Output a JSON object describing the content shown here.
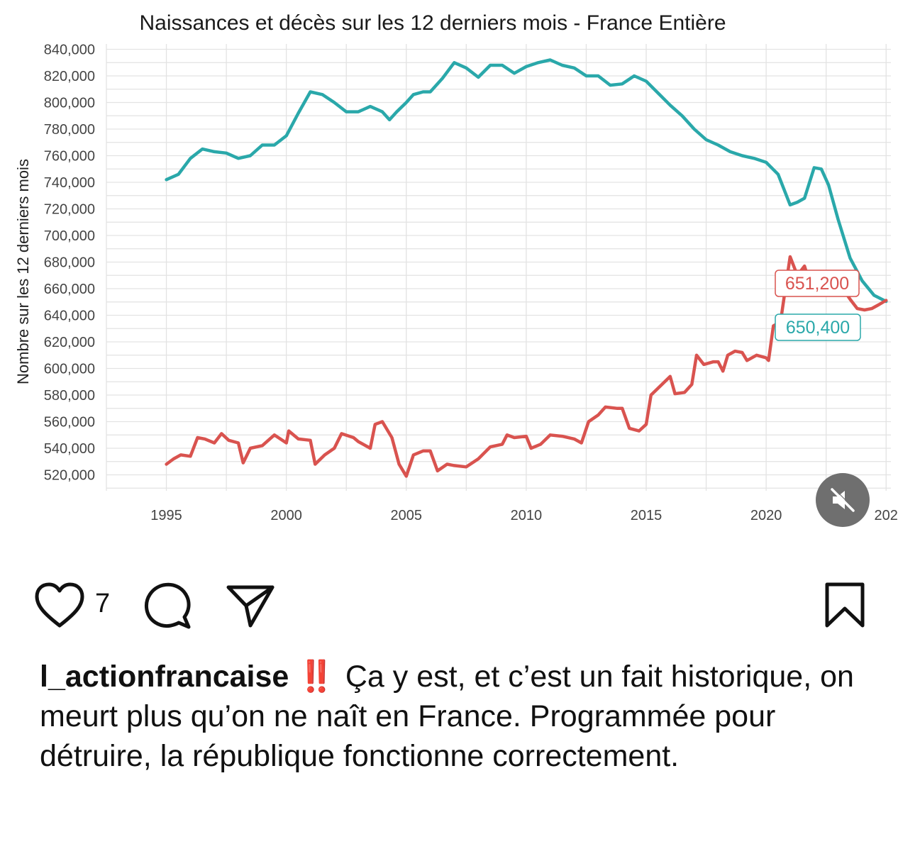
{
  "post": {
    "username": "l_actionfrancaise",
    "emoji": "‼️",
    "caption": "Ça y est, et c’est un fait historique, on meurt plus qu’on ne naît en France. Programmée pour détruire, la république fonctionne correctement.",
    "like_count": "7"
  },
  "icons": {
    "like": "heart-icon",
    "comment": "comment-bubble-icon",
    "share": "paper-plane-icon",
    "save": "bookmark-icon",
    "mute": "speaker-muted-icon"
  },
  "colors": {
    "births": "#2aa8aa",
    "deaths": "#d9534f",
    "mute_bg": "#6f6f6f"
  },
  "chart_data": {
    "type": "line",
    "title": "Naissances et décès sur les 12 derniers mois - France Entière",
    "xlabel": "",
    "ylabel": "Nombre sur les 12 derniers mois",
    "xlim": [
      1992.5,
      2025.2
    ],
    "ylim": [
      508000,
      844000
    ],
    "x_ticks": [
      "1995",
      "2000",
      "2005",
      "2010",
      "2015",
      "2020",
      "202"
    ],
    "y_ticks": [
      "520,000",
      "540,000",
      "560,000",
      "580,000",
      "600,000",
      "620,000",
      "640,000",
      "660,000",
      "680,000",
      "700,000",
      "720,000",
      "740,000",
      "760,000",
      "780,000",
      "800,000",
      "820,000",
      "840,000"
    ],
    "grid": true,
    "legend": "none",
    "series": [
      {
        "color": "#2aa8aa",
        "end_label": "650,400",
        "points": [
          [
            1995.0,
            742000
          ],
          [
            1995.5,
            746000
          ],
          [
            1996.0,
            758000
          ],
          [
            1996.5,
            765000
          ],
          [
            1997.0,
            763000
          ],
          [
            1997.5,
            762000
          ],
          [
            1998.0,
            758000
          ],
          [
            1998.5,
            760000
          ],
          [
            1999.0,
            768000
          ],
          [
            1999.5,
            768000
          ],
          [
            2000.0,
            775000
          ],
          [
            2000.5,
            792000
          ],
          [
            2001.0,
            808000
          ],
          [
            2001.5,
            806000
          ],
          [
            2002.0,
            800000
          ],
          [
            2002.5,
            793000
          ],
          [
            2003.0,
            793000
          ],
          [
            2003.5,
            797000
          ],
          [
            2004.0,
            793000
          ],
          [
            2004.3,
            787000
          ],
          [
            2004.6,
            793000
          ],
          [
            2005.0,
            800000
          ],
          [
            2005.3,
            806000
          ],
          [
            2005.7,
            808000
          ],
          [
            2006.0,
            808000
          ],
          [
            2006.5,
            818000
          ],
          [
            2007.0,
            830000
          ],
          [
            2007.5,
            826000
          ],
          [
            2008.0,
            819000
          ],
          [
            2008.5,
            828000
          ],
          [
            2009.0,
            828000
          ],
          [
            2009.5,
            822000
          ],
          [
            2010.0,
            827000
          ],
          [
            2010.5,
            830000
          ],
          [
            2011.0,
            832000
          ],
          [
            2011.5,
            828000
          ],
          [
            2012.0,
            826000
          ],
          [
            2012.5,
            820000
          ],
          [
            2013.0,
            820000
          ],
          [
            2013.5,
            813000
          ],
          [
            2014.0,
            814000
          ],
          [
            2014.5,
            820000
          ],
          [
            2015.0,
            816000
          ],
          [
            2015.5,
            807000
          ],
          [
            2016.0,
            798000
          ],
          [
            2016.5,
            790000
          ],
          [
            2017.0,
            780000
          ],
          [
            2017.5,
            772000
          ],
          [
            2018.0,
            768000
          ],
          [
            2018.5,
            763000
          ],
          [
            2019.0,
            760000
          ],
          [
            2019.5,
            758000
          ],
          [
            2020.0,
            755000
          ],
          [
            2020.5,
            746000
          ],
          [
            2021.0,
            723000
          ],
          [
            2021.3,
            725000
          ],
          [
            2021.6,
            728000
          ],
          [
            2022.0,
            751000
          ],
          [
            2022.3,
            750000
          ],
          [
            2022.6,
            738000
          ],
          [
            2023.0,
            712000
          ],
          [
            2023.5,
            683000
          ],
          [
            2024.0,
            666000
          ],
          [
            2024.5,
            655000
          ],
          [
            2025.0,
            650400
          ]
        ]
      },
      {
        "color": "#d9534f",
        "end_label": "651,200",
        "points": [
          [
            1995.0,
            528000
          ],
          [
            1995.3,
            532000
          ],
          [
            1995.6,
            535000
          ],
          [
            1996.0,
            534000
          ],
          [
            1996.3,
            548000
          ],
          [
            1996.6,
            547000
          ],
          [
            1997.0,
            544000
          ],
          [
            1997.3,
            551000
          ],
          [
            1997.6,
            546000
          ],
          [
            1998.0,
            544000
          ],
          [
            1998.2,
            529000
          ],
          [
            1998.5,
            540000
          ],
          [
            1999.0,
            542000
          ],
          [
            1999.5,
            550000
          ],
          [
            2000.0,
            544000
          ],
          [
            2000.1,
            553000
          ],
          [
            2000.5,
            547000
          ],
          [
            2001.0,
            546000
          ],
          [
            2001.2,
            528000
          ],
          [
            2001.6,
            535000
          ],
          [
            2002.0,
            540000
          ],
          [
            2002.3,
            551000
          ],
          [
            2002.8,
            548000
          ],
          [
            2003.0,
            545000
          ],
          [
            2003.5,
            540000
          ],
          [
            2003.7,
            558000
          ],
          [
            2004.0,
            560000
          ],
          [
            2004.4,
            548000
          ],
          [
            2004.7,
            528000
          ],
          [
            2005.0,
            519000
          ],
          [
            2005.3,
            535000
          ],
          [
            2005.7,
            538000
          ],
          [
            2006.0,
            538000
          ],
          [
            2006.3,
            523000
          ],
          [
            2006.7,
            528000
          ],
          [
            2007.0,
            527000
          ],
          [
            2007.5,
            526000
          ],
          [
            2008.0,
            532000
          ],
          [
            2008.5,
            541000
          ],
          [
            2009.0,
            543000
          ],
          [
            2009.2,
            550000
          ],
          [
            2009.5,
            548000
          ],
          [
            2010.0,
            549000
          ],
          [
            2010.2,
            540000
          ],
          [
            2010.6,
            543000
          ],
          [
            2011.0,
            550000
          ],
          [
            2011.5,
            549000
          ],
          [
            2012.0,
            547000
          ],
          [
            2012.3,
            544000
          ],
          [
            2012.6,
            560000
          ],
          [
            2013.0,
            565000
          ],
          [
            2013.3,
            571000
          ],
          [
            2013.8,
            570000
          ],
          [
            2014.0,
            570000
          ],
          [
            2014.3,
            555000
          ],
          [
            2014.7,
            553000
          ],
          [
            2015.0,
            558000
          ],
          [
            2015.2,
            580000
          ],
          [
            2015.6,
            587000
          ],
          [
            2016.0,
            594000
          ],
          [
            2016.2,
            581000
          ],
          [
            2016.6,
            582000
          ],
          [
            2016.9,
            588000
          ],
          [
            2017.1,
            610000
          ],
          [
            2017.4,
            603000
          ],
          [
            2017.8,
            605000
          ],
          [
            2018.0,
            605000
          ],
          [
            2018.2,
            598000
          ],
          [
            2018.4,
            610000
          ],
          [
            2018.7,
            613000
          ],
          [
            2019.0,
            612000
          ],
          [
            2019.2,
            606000
          ],
          [
            2019.6,
            610000
          ],
          [
            2020.0,
            608000
          ],
          [
            2020.1,
            606000
          ],
          [
            2020.3,
            632000
          ],
          [
            2020.6,
            635000
          ],
          [
            2020.8,
            660000
          ],
          [
            2021.0,
            684000
          ],
          [
            2021.3,
            670000
          ],
          [
            2021.6,
            677000
          ],
          [
            2021.8,
            665000
          ],
          [
            2022.0,
            662000
          ],
          [
            2022.3,
            658000
          ],
          [
            2022.6,
            668000
          ],
          [
            2022.9,
            672000
          ],
          [
            2023.2,
            660000
          ],
          [
            2023.5,
            652000
          ],
          [
            2023.8,
            645000
          ],
          [
            2024.1,
            644000
          ],
          [
            2024.4,
            645000
          ],
          [
            2024.7,
            648000
          ],
          [
            2025.0,
            651200
          ]
        ]
      }
    ]
  }
}
